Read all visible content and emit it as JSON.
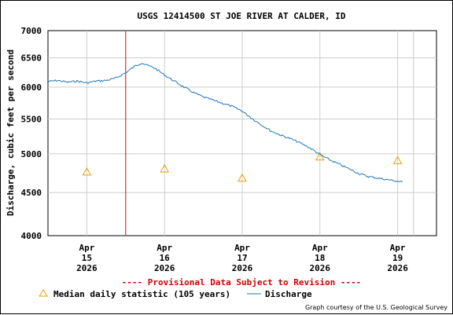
{
  "chart_data": {
    "type": "line",
    "title": "USGS 12414500 ST JOE RIVER AT CALDER, ID",
    "ylabel": "Discharge, cubic feet per second",
    "xlabel": "",
    "y_scale": "log",
    "ylim": [
      4000,
      7000
    ],
    "y_ticks": [
      {
        "value": 7000,
        "label": "7000"
      },
      {
        "value": 6500,
        "label": "6500"
      },
      {
        "value": 6000,
        "label": "6000"
      },
      {
        "value": 5500,
        "label": "5500"
      },
      {
        "value": 5000,
        "label": "5000"
      },
      {
        "value": 4500,
        "label": "4500"
      },
      {
        "value": 4000,
        "label": "4000"
      }
    ],
    "xlim": [
      "2026-04-14T12:00",
      "2026-04-19T12:00"
    ],
    "x_ticks": [
      {
        "value": "2026-04-15T00:00",
        "month": "Apr",
        "day": "15",
        "year": "2026"
      },
      {
        "value": "2026-04-16T00:00",
        "month": "Apr",
        "day": "16",
        "year": "2026"
      },
      {
        "value": "2026-04-17T00:00",
        "month": "Apr",
        "day": "17",
        "year": "2026"
      },
      {
        "value": "2026-04-18T00:00",
        "month": "Apr",
        "day": "18",
        "year": "2026"
      },
      {
        "value": "2026-04-19T00:00",
        "month": "Apr",
        "day": "19",
        "year": "2026"
      }
    ],
    "grid": true,
    "series": [
      {
        "name": "Discharge",
        "color": "#1f77b4",
        "style": "line",
        "points": [
          [
            "2026-04-14T12:00",
            6090
          ],
          [
            "2026-04-14T15:00",
            6110
          ],
          [
            "2026-04-14T18:00",
            6080
          ],
          [
            "2026-04-14T21:00",
            6100
          ],
          [
            "2026-04-15T00:00",
            6070
          ],
          [
            "2026-04-15T03:00",
            6100
          ],
          [
            "2026-04-15T06:00",
            6110
          ],
          [
            "2026-04-15T09:00",
            6150
          ],
          [
            "2026-04-15T12:00",
            6240
          ],
          [
            "2026-04-15T15:00",
            6360
          ],
          [
            "2026-04-15T17:00",
            6410
          ],
          [
            "2026-04-15T19:00",
            6360
          ],
          [
            "2026-04-15T21:00",
            6320
          ],
          [
            "2026-04-16T00:00",
            6200
          ],
          [
            "2026-04-16T03:00",
            6100
          ],
          [
            "2026-04-16T06:00",
            6000
          ],
          [
            "2026-04-16T09:00",
            5910
          ],
          [
            "2026-04-16T12:00",
            5840
          ],
          [
            "2026-04-16T15:00",
            5790
          ],
          [
            "2026-04-16T18:00",
            5740
          ],
          [
            "2026-04-16T21:00",
            5690
          ],
          [
            "2026-04-17T00:00",
            5620
          ],
          [
            "2026-04-17T03:00",
            5510
          ],
          [
            "2026-04-17T06:00",
            5410
          ],
          [
            "2026-04-17T09:00",
            5320
          ],
          [
            "2026-04-17T12:00",
            5260
          ],
          [
            "2026-04-17T15:00",
            5210
          ],
          [
            "2026-04-17T18:00",
            5150
          ],
          [
            "2026-04-17T21:00",
            5080
          ],
          [
            "2026-04-18T00:00",
            4990
          ],
          [
            "2026-04-18T03:00",
            4920
          ],
          [
            "2026-04-18T06:00",
            4860
          ],
          [
            "2026-04-18T09:00",
            4800
          ],
          [
            "2026-04-18T12:00",
            4740
          ],
          [
            "2026-04-18T15:00",
            4700
          ],
          [
            "2026-04-18T18:00",
            4680
          ],
          [
            "2026-04-18T21:00",
            4660
          ],
          [
            "2026-04-19T00:00",
            4640
          ],
          [
            "2026-04-19T01:30",
            4630
          ]
        ]
      },
      {
        "name": "Median daily statistic (105 years)",
        "color": "#e8a000",
        "style": "triangle",
        "points": [
          [
            "2026-04-15T00:00",
            4760
          ],
          [
            "2026-04-16T00:00",
            4800
          ],
          [
            "2026-04-17T00:00",
            4680
          ],
          [
            "2026-04-18T00:00",
            4960
          ],
          [
            "2026-04-19T00:00",
            4910
          ]
        ]
      }
    ],
    "legend_placement": "bottom",
    "provisional_note": "---- Provisional Data Subject to Revision ----",
    "credit": "Graph courtesy of the U.S. Geological Survey"
  }
}
